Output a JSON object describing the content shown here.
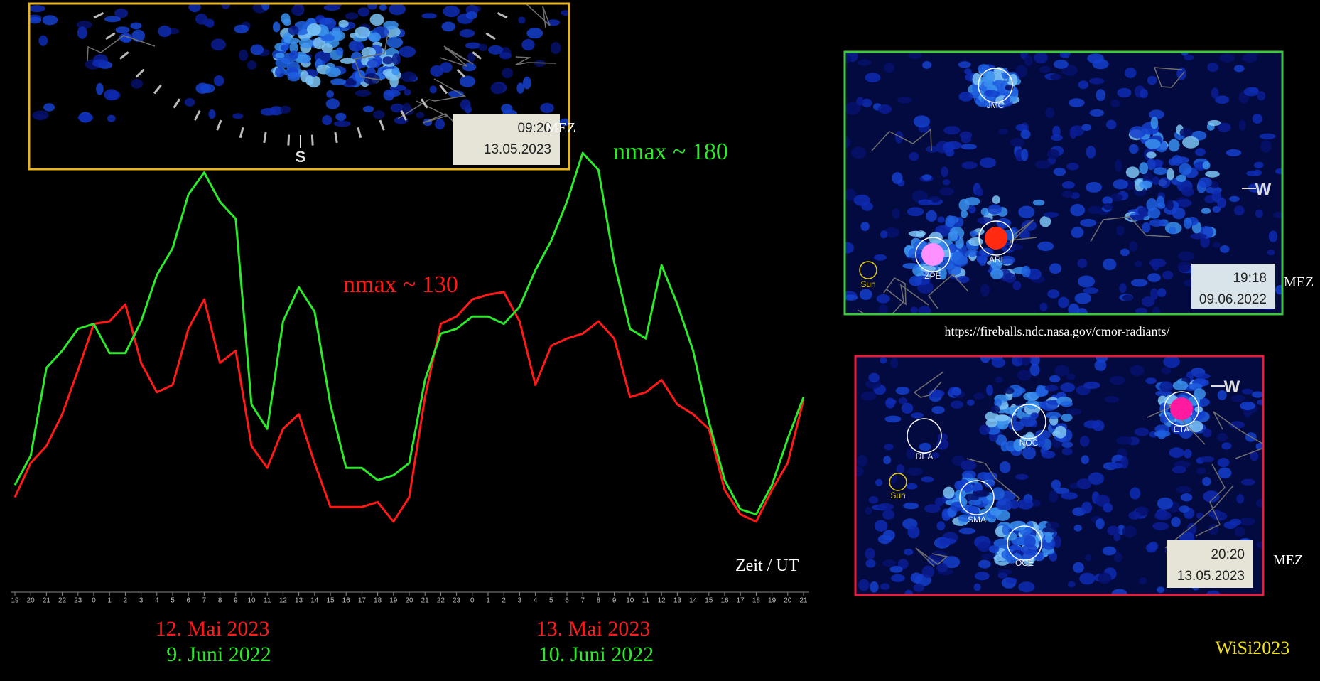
{
  "chart_data": {
    "type": "line",
    "categories": [
      "19",
      "20",
      "21",
      "22",
      "23",
      "0",
      "1",
      "2",
      "3",
      "4",
      "5",
      "6",
      "7",
      "8",
      "9",
      "10",
      "11",
      "12",
      "13",
      "14",
      "15",
      "16",
      "17",
      "18",
      "19",
      "20",
      "21",
      "22",
      "23",
      "0",
      "1",
      "2",
      "3",
      "4",
      "5",
      "6",
      "7",
      "8",
      "9",
      "10",
      "11",
      "12",
      "13",
      "14",
      "15",
      "16",
      "17",
      "18",
      "19",
      "20",
      "21"
    ],
    "series": [
      {
        "color": "#ff1a1a",
        "labels": [
          "12. Mai 2023",
          "13. Mai 2023"
        ],
        "annotation": "nmax ~ 130",
        "values": [
          38,
          52,
          59,
          72,
          90,
          109,
          110,
          117,
          93,
          81,
          84,
          107,
          119,
          93,
          98,
          59,
          50,
          66,
          72,
          52,
          34,
          34,
          34,
          36,
          28,
          38,
          79,
          109,
          112,
          119,
          121,
          122,
          110,
          84,
          100,
          103,
          105,
          110,
          103,
          79,
          81,
          86,
          76,
          72,
          66,
          41,
          31,
          28,
          41,
          52,
          78
        ]
      },
      {
        "color": "#2ee82e",
        "labels": [
          "9. Juni 2022",
          "10. Juni 2022"
        ],
        "annotation": "nmax ~ 180",
        "values": [
          43,
          55,
          91,
          98,
          107,
          109,
          97,
          97,
          110,
          129,
          140,
          162,
          171,
          159,
          152,
          76,
          66,
          110,
          124,
          114,
          76,
          50,
          50,
          45,
          47,
          52,
          86,
          105,
          107,
          112,
          112,
          109,
          116,
          131,
          143,
          159,
          179,
          172,
          134,
          107,
          103,
          133,
          117,
          98,
          69,
          45,
          33,
          31,
          43,
          62,
          79
        ]
      }
    ],
    "ylim": [
      0,
      200
    ],
    "x_label": "Zeit / UT",
    "grid": false
  },
  "panels": [
    {
      "time": "09:20",
      "date": "13.05.2023",
      "unit": "MEZ",
      "markers": [
        "S"
      ]
    },
    {
      "time": "19:18",
      "date": "09.06.2022",
      "unit": "MEZ",
      "markers": [
        "JMC",
        "ZPE",
        "ARI",
        "Sun",
        "W"
      ]
    },
    {
      "time": "20:20",
      "date": "13.05.2023",
      "unit": "MEZ",
      "markers": [
        "DEA",
        "NOC",
        "ETA",
        "SMA",
        "OCE",
        "Sun",
        "W"
      ]
    }
  ],
  "source_url": "https://fireballs.ndc.nasa.gov/cmor-radiants/",
  "signature": "WiSi2023"
}
